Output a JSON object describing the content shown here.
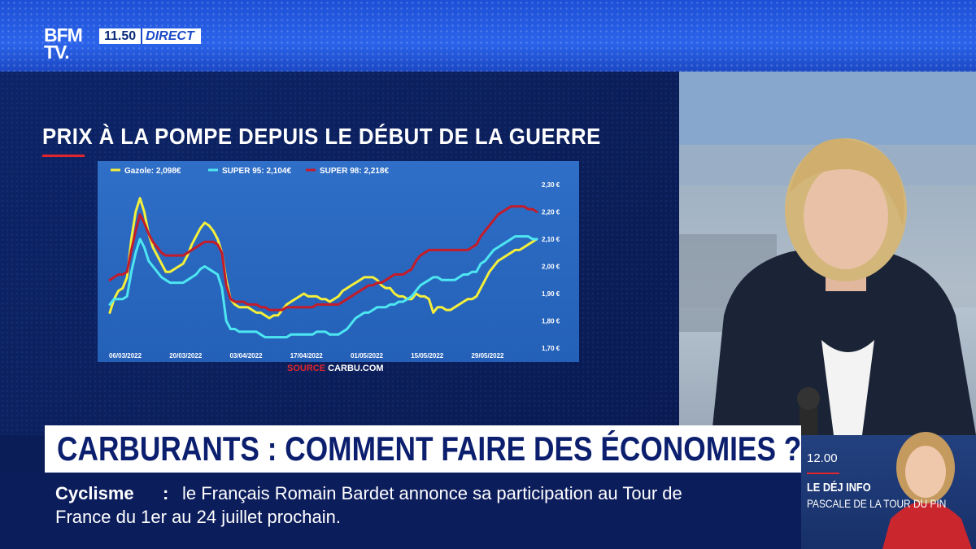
{
  "channel": {
    "logo_line1": "BFM",
    "logo_line2": "TV.",
    "time": "11.50",
    "live_label": "DIRECT"
  },
  "graphic": {
    "title": "PRIX À LA POMPE DEPUIS LE DÉBUT DE LA GUERRE"
  },
  "chart_data": {
    "type": "line",
    "x": [
      "06/03/2022",
      "07/03/2022",
      "08/03/2022",
      "09/03/2022",
      "10/03/2022",
      "11/03/2022",
      "12/03/2022",
      "13/03/2022",
      "14/03/2022",
      "15/03/2022",
      "16/03/2022",
      "17/03/2022",
      "18/03/2022",
      "19/03/2022",
      "20/03/2022",
      "21/03/2022",
      "22/03/2022",
      "23/03/2022",
      "24/03/2022",
      "25/03/2022",
      "26/03/2022",
      "27/03/2022",
      "28/03/2022",
      "29/03/2022",
      "30/03/2022",
      "31/03/2022",
      "01/04/2022",
      "02/04/2022",
      "03/04/2022",
      "04/04/2022",
      "05/04/2022",
      "06/04/2022",
      "07/04/2022",
      "08/04/2022",
      "09/04/2022",
      "10/04/2022",
      "11/04/2022",
      "12/04/2022",
      "13/04/2022",
      "14/04/2022",
      "15/04/2022",
      "16/04/2022",
      "17/04/2022",
      "18/04/2022",
      "19/04/2022",
      "20/04/2022",
      "21/04/2022",
      "22/04/2022",
      "23/04/2022",
      "24/04/2022",
      "25/04/2022",
      "26/04/2022",
      "27/04/2022",
      "28/04/2022",
      "29/04/2022",
      "30/04/2022",
      "01/05/2022",
      "02/05/2022",
      "03/05/2022",
      "04/05/2022",
      "05/05/2022",
      "06/05/2022",
      "07/05/2022",
      "08/05/2022",
      "09/05/2022",
      "10/05/2022",
      "11/05/2022",
      "12/05/2022",
      "13/05/2022",
      "14/05/2022",
      "15/05/2022",
      "16/05/2022",
      "17/05/2022",
      "18/05/2022",
      "19/05/2022",
      "20/05/2022",
      "21/05/2022",
      "22/05/2022",
      "23/05/2022",
      "24/05/2022",
      "25/05/2022",
      "26/05/2022",
      "27/05/2022",
      "28/05/2022",
      "29/05/2022",
      "30/05/2022",
      "31/05/2022",
      "01/06/2022",
      "02/06/2022",
      "03/06/2022",
      "04/06/2022",
      "05/06/2022",
      "06/06/2022",
      "07/06/2022",
      "08/06/2022",
      "09/06/2022",
      "10/06/2022",
      "11/06/2022",
      "12/06/2022",
      "13/06/2022"
    ],
    "x_ticks": [
      "06/03/2022",
      "20/03/2022",
      "03/04/2022",
      "17/04/2022",
      "01/05/2022",
      "15/05/2022",
      "29/05/2022"
    ],
    "y_ticks": [
      "2,30 €",
      "2,20 €",
      "2,10 €",
      "2,00 €",
      "1,90 €",
      "1,80 €",
      "1,70 €"
    ],
    "ylim": [
      1.7,
      2.3
    ],
    "series": [
      {
        "name": "Gazole: 2,098€",
        "color": "#f4ef3a",
        "values": [
          1.83,
          1.88,
          1.91,
          1.92,
          1.96,
          2.1,
          2.2,
          2.25,
          2.2,
          2.12,
          2.07,
          2.04,
          2.01,
          1.98,
          1.98,
          1.99,
          2.0,
          2.01,
          2.04,
          2.08,
          2.11,
          2.14,
          2.16,
          2.15,
          2.13,
          2.1,
          2.05,
          1.95,
          1.88,
          1.86,
          1.85,
          1.85,
          1.85,
          1.84,
          1.83,
          1.83,
          1.82,
          1.81,
          1.82,
          1.82,
          1.84,
          1.86,
          1.87,
          1.88,
          1.89,
          1.9,
          1.89,
          1.89,
          1.89,
          1.88,
          1.88,
          1.87,
          1.88,
          1.89,
          1.91,
          1.92,
          1.93,
          1.94,
          1.95,
          1.96,
          1.96,
          1.96,
          1.95,
          1.93,
          1.92,
          1.92,
          1.9,
          1.89,
          1.89,
          1.88,
          1.88,
          1.9,
          1.89,
          1.89,
          1.88,
          1.83,
          1.85,
          1.85,
          1.84,
          1.84,
          1.85,
          1.86,
          1.87,
          1.88,
          1.88,
          1.89,
          1.92,
          1.95,
          1.98,
          2.0,
          2.02,
          2.03,
          2.04,
          2.05,
          2.06,
          2.06,
          2.07,
          2.08,
          2.09,
          2.1
        ]
      },
      {
        "name": "SUPER 95: 2,104€",
        "color": "#4de6f1",
        "values": [
          1.86,
          1.88,
          1.88,
          1.88,
          1.89,
          1.98,
          2.05,
          2.1,
          2.07,
          2.02,
          2.0,
          1.98,
          1.96,
          1.95,
          1.94,
          1.94,
          1.94,
          1.94,
          1.95,
          1.96,
          1.97,
          1.99,
          2.0,
          1.99,
          1.98,
          1.97,
          1.92,
          1.8,
          1.77,
          1.77,
          1.76,
          1.76,
          1.76,
          1.76,
          1.76,
          1.75,
          1.74,
          1.74,
          1.74,
          1.74,
          1.74,
          1.74,
          1.75,
          1.75,
          1.75,
          1.75,
          1.75,
          1.75,
          1.76,
          1.76,
          1.76,
          1.75,
          1.75,
          1.75,
          1.76,
          1.77,
          1.79,
          1.81,
          1.82,
          1.83,
          1.83,
          1.84,
          1.85,
          1.85,
          1.85,
          1.86,
          1.86,
          1.87,
          1.87,
          1.88,
          1.89,
          1.91,
          1.93,
          1.94,
          1.95,
          1.96,
          1.96,
          1.95,
          1.95,
          1.95,
          1.95,
          1.96,
          1.97,
          1.97,
          1.98,
          1.98,
          2.01,
          2.02,
          2.04,
          2.06,
          2.07,
          2.08,
          2.09,
          2.1,
          2.11,
          2.11,
          2.11,
          2.11,
          2.1,
          2.1
        ]
      },
      {
        "name": "SUPER 98: 2,218€",
        "color": "#c31c2a",
        "values": [
          1.95,
          1.96,
          1.97,
          1.97,
          1.98,
          2.06,
          2.13,
          2.19,
          2.16,
          2.12,
          2.09,
          2.07,
          2.05,
          2.04,
          2.04,
          2.04,
          2.04,
          2.04,
          2.05,
          2.06,
          2.07,
          2.08,
          2.09,
          2.09,
          2.09,
          2.08,
          2.05,
          1.93,
          1.88,
          1.87,
          1.87,
          1.87,
          1.86,
          1.86,
          1.86,
          1.85,
          1.85,
          1.84,
          1.84,
          1.84,
          1.84,
          1.85,
          1.85,
          1.85,
          1.85,
          1.85,
          1.85,
          1.85,
          1.86,
          1.86,
          1.86,
          1.86,
          1.86,
          1.86,
          1.87,
          1.88,
          1.89,
          1.9,
          1.91,
          1.92,
          1.93,
          1.93,
          1.94,
          1.94,
          1.95,
          1.96,
          1.97,
          1.97,
          1.97,
          1.98,
          1.99,
          2.02,
          2.04,
          2.05,
          2.06,
          2.06,
          2.06,
          2.06,
          2.06,
          2.06,
          2.06,
          2.06,
          2.06,
          2.06,
          2.07,
          2.08,
          2.11,
          2.13,
          2.15,
          2.17,
          2.19,
          2.2,
          2.21,
          2.22,
          2.22,
          2.22,
          2.22,
          2.21,
          2.21,
          2.2
        ]
      }
    ]
  },
  "chart_source": {
    "label": "SOURCE",
    "value": "CARBU.COM"
  },
  "headline": "CARBURANTS : COMMENT FAIRE DES ÉCONOMIES ?",
  "ticker": {
    "topic": "Cyclisme",
    "separator": ":",
    "line1": "le Français Romain Bardet annonce sa participation au Tour de",
    "line2": "France du 1er au 24 juillet prochain."
  },
  "next_show": {
    "time": "12.00",
    "title": "LE DÉJ INFO",
    "host": "PASCALE DE LA TOUR DU PIN"
  }
}
